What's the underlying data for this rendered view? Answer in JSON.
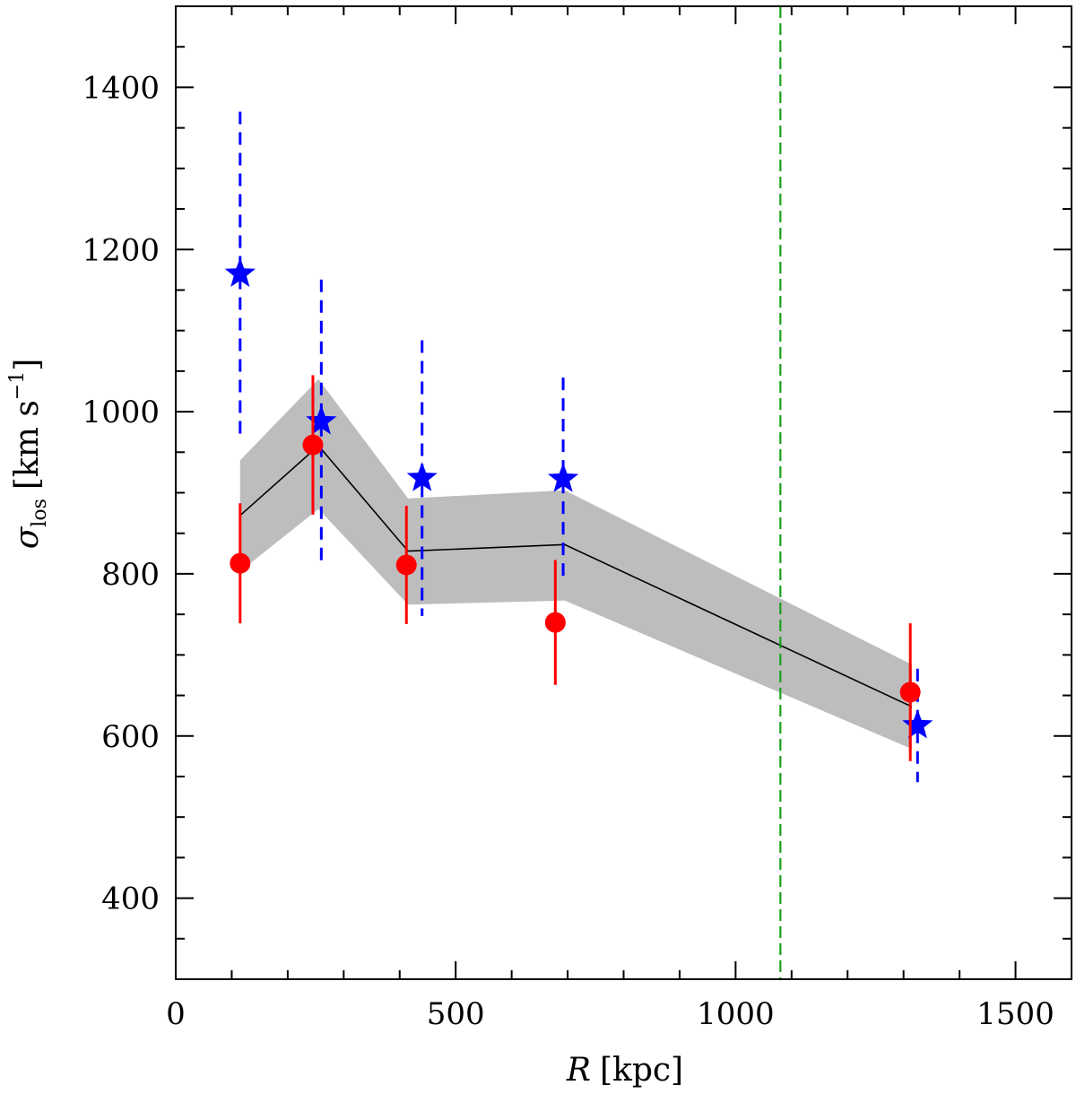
{
  "chart_data": {
    "type": "scatter",
    "xlabel": "R [kpc]",
    "ylabel": "σlos [km s−1]",
    "xlabel_parts": {
      "symbol": "R",
      "unit": "[kpc]"
    },
    "ylabel_parts": {
      "symbol": "σ",
      "subscript": "los",
      "unit_pre": "[km s",
      "unit_exp": "−1",
      "unit_post": "]"
    },
    "xlim": [
      0,
      1600
    ],
    "ylim": [
      300,
      1500
    ],
    "xticks": [
      0,
      500,
      1000,
      1500
    ],
    "yticks": [
      400,
      600,
      800,
      1000,
      1200,
      1400
    ],
    "x_minor_step": 100,
    "y_minor_step": 50,
    "grid": false,
    "reference_line": {
      "orientation": "vertical",
      "x": 1080,
      "style": "dashed",
      "color": "#1aa01a"
    },
    "model": {
      "name": "model",
      "color": "#000000",
      "band_color": "#bdbdbd",
      "x": [
        115,
        255,
        415,
        695,
        1315
      ],
      "y": [
        872,
        958,
        828,
        836,
        636
      ],
      "lower": [
        803,
        880,
        762,
        767,
        584
      ],
      "upper": [
        940,
        1040,
        893,
        903,
        688
      ]
    },
    "series": [
      {
        "name": "red circles",
        "marker": "circle",
        "color": "#ff0000",
        "errorbar_style": "solid",
        "x": [
          115,
          245,
          412,
          678,
          1312
        ],
        "y": [
          813,
          959,
          811,
          740,
          654
        ],
        "err": [
          74,
          86,
          73,
          77,
          85
        ]
      },
      {
        "name": "blue stars",
        "marker": "star",
        "color": "#0000ff",
        "errorbar_style": "dashed",
        "x": [
          115,
          260,
          440,
          692,
          1325
        ],
        "y": [
          1170,
          988,
          918,
          917,
          613
        ],
        "err": [
          200,
          175,
          170,
          125,
          70
        ]
      }
    ]
  }
}
